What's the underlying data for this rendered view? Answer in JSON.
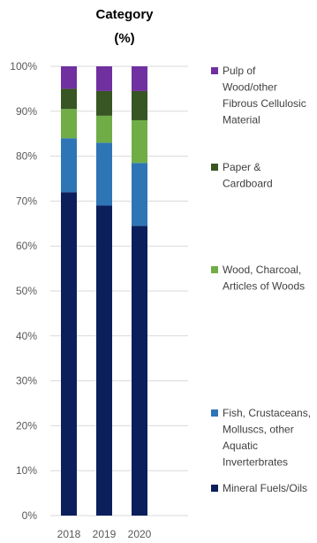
{
  "chart_data": {
    "type": "bar",
    "stacked": true,
    "title_lines": [
      "Category",
      "(%)"
    ],
    "categories": [
      "2018",
      "2019",
      "2020"
    ],
    "ylim": [
      0,
      100
    ],
    "yticks": [
      "0%",
      "10%",
      "20%",
      "30%",
      "40%",
      "50%",
      "60%",
      "70%",
      "80%",
      "90%",
      "100%"
    ],
    "grid": true,
    "legend_position": "right",
    "series": [
      {
        "name": "Mineral Fuels/Oils",
        "color": "#0b1f5c",
        "values": [
          72,
          69,
          64.5
        ]
      },
      {
        "name": "Fish, Crustaceans, Molluscs, other Aquatic Inverterbrates",
        "color": "#2e75b6",
        "values": [
          12,
          14,
          14
        ]
      },
      {
        "name": "Wood, Charcoal, Articles of Woods",
        "color": "#70ad47",
        "values": [
          6.5,
          6,
          9.5
        ]
      },
      {
        "name": "Paper & Cardboard",
        "color": "#375623",
        "values": [
          4.5,
          5.5,
          6.5
        ]
      },
      {
        "name": "Pulp of Wood/other Fibrous Cellulosic Material",
        "color": "#7030a0",
        "values": [
          5,
          5.5,
          5.5
        ]
      }
    ]
  }
}
